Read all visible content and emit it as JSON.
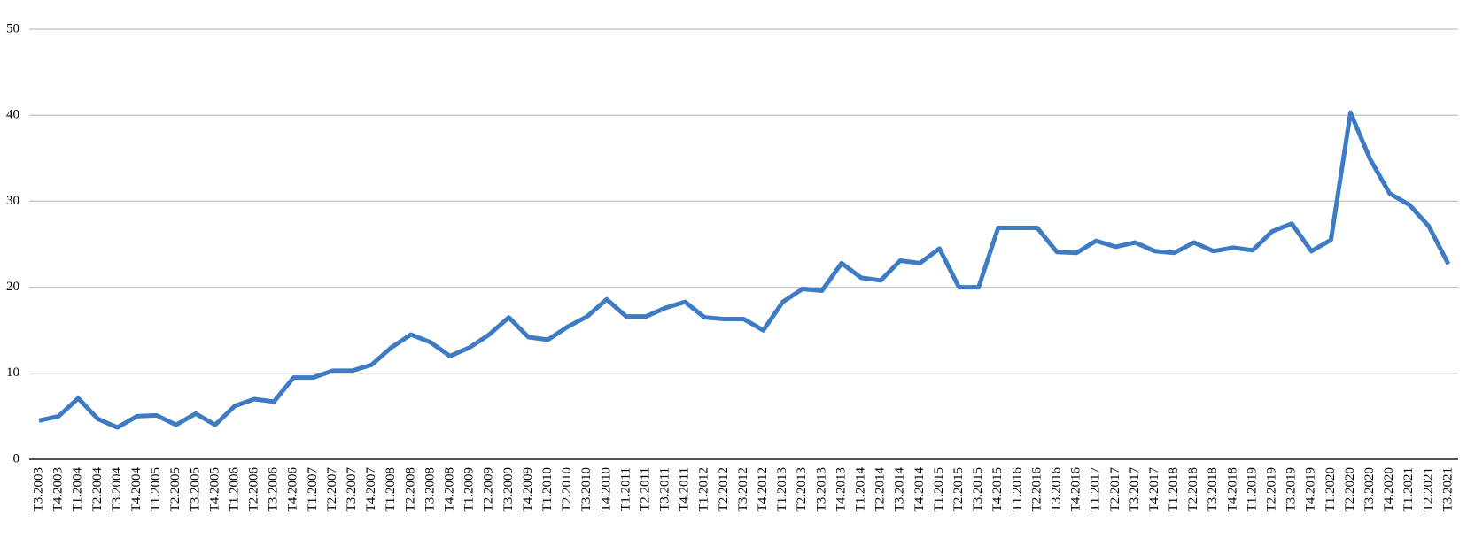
{
  "chart_data": {
    "type": "line",
    "categories": [
      "T3.2003",
      "T4.2003",
      "T1.2004",
      "T2.2004",
      "T3.2004",
      "T4.2004",
      "T1.2005",
      "T2.2005",
      "T3.2005",
      "T4.2005",
      "T1.2006",
      "T2.2006",
      "T3.2006",
      "T4.2006",
      "T1.2007",
      "T2.2007",
      "T3.2007",
      "T4.2007",
      "T1.2008",
      "T2.2008",
      "T3.2008",
      "T4.2008",
      "T1.2009",
      "T2.2009",
      "T3.2009",
      "T4.2009",
      "T1.2010",
      "T2.2010",
      "T3.2010",
      "T4.2010",
      "T1.2011",
      "T2.2011",
      "T3.2011",
      "T4.2011",
      "T1.2012",
      "T2.2012",
      "T3.2012",
      "T4.2012",
      "T1.2013",
      "T2.2013",
      "T3.2013",
      "T4.2013",
      "T1.2014",
      "T2.2014",
      "T3.2014",
      "T4.2014",
      "T1.2015",
      "T2.2015",
      "T3.2015",
      "T4.2015",
      "T1.2016",
      "T2.2016",
      "T3.2016",
      "T4.2016",
      "T1.2017",
      "T2.2017",
      "T3.2017",
      "T4.2017",
      "T1.2018",
      "T2.2018",
      "T3.2018",
      "T4.2018",
      "T1.2019",
      "T2.2019",
      "T3.2019",
      "T4.2019",
      "T1.2020",
      "T2.2020",
      "T3.2020",
      "T4.2020",
      "T1.2021",
      "T2.2021",
      "T3.2021"
    ],
    "values": [
      4.5,
      5.0,
      7.1,
      4.7,
      3.7,
      5.0,
      5.1,
      4.0,
      5.3,
      4.0,
      6.2,
      7.0,
      6.7,
      9.5,
      9.5,
      10.3,
      10.3,
      11.0,
      13.0,
      14.5,
      13.6,
      12.0,
      13.0,
      14.5,
      16.5,
      14.2,
      13.9,
      15.4,
      16.6,
      18.6,
      16.6,
      16.6,
      17.6,
      18.3,
      16.5,
      16.3,
      16.3,
      15.0,
      18.3,
      19.8,
      19.6,
      22.8,
      21.1,
      20.8,
      23.1,
      22.8,
      24.5,
      20.0,
      20.0,
      26.9,
      26.9,
      26.9,
      24.1,
      24.0,
      25.4,
      24.7,
      25.2,
      24.2,
      24.0,
      25.2,
      24.2,
      24.6,
      24.3,
      26.5,
      27.4,
      24.2,
      25.5,
      40.3,
      34.9,
      30.9,
      29.6,
      27.1,
      22.7
    ],
    "color": "#3d7cc4",
    "ylim": [
      0,
      50
    ],
    "yticks": [
      0,
      10,
      20,
      30,
      40,
      50
    ],
    "grid": true
  }
}
